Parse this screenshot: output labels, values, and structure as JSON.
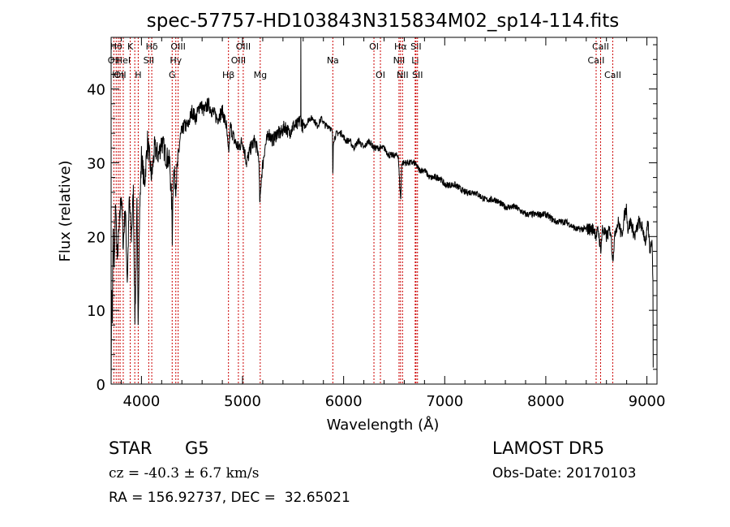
{
  "chart_data": {
    "type": "line",
    "title": "spec-57757-HD103843N315834M02_sp14-114.fits",
    "xlabel": "Wavelength (Å)",
    "ylabel": "Flux (relative)",
    "xlim": [
      3700,
      9100
    ],
    "ylim": [
      0,
      47
    ],
    "x_ticks": [
      4000,
      5000,
      6000,
      7000,
      8000,
      9000
    ],
    "y_ticks": [
      0,
      10,
      20,
      30,
      40
    ],
    "grid": false,
    "line_color": "#000000",
    "marker_line_color": "#cc0000",
    "spectrum_anchors": [
      [
        3700,
        0
      ],
      [
        3706,
        14
      ],
      [
        3712,
        9
      ],
      [
        3720,
        22
      ],
      [
        3730,
        15
      ],
      [
        3745,
        25
      ],
      [
        3760,
        17
      ],
      [
        3780,
        21
      ],
      [
        3800,
        26
      ],
      [
        3820,
        19
      ],
      [
        3840,
        24
      ],
      [
        3860,
        14
      ],
      [
        3880,
        25
      ],
      [
        3900,
        20
      ],
      [
        3920,
        26
      ],
      [
        3935,
        9
      ],
      [
        3948,
        17
      ],
      [
        3955,
        24
      ],
      [
        3968,
        9
      ],
      [
        3980,
        22
      ],
      [
        4000,
        31
      ],
      [
        4030,
        27
      ],
      [
        4060,
        33
      ],
      [
        4101,
        28
      ],
      [
        4130,
        32
      ],
      [
        4170,
        31
      ],
      [
        4200,
        33
      ],
      [
        4240,
        31
      ],
      [
        4280,
        30
      ],
      [
        4300,
        24
      ],
      [
        4305,
        20
      ],
      [
        4315,
        29
      ],
      [
        4340,
        27
      ],
      [
        4380,
        33
      ],
      [
        4420,
        35
      ],
      [
        4460,
        35
      ],
      [
        4500,
        37
      ],
      [
        4540,
        36
      ],
      [
        4580,
        38
      ],
      [
        4620,
        37
      ],
      [
        4660,
        38
      ],
      [
        4700,
        37
      ],
      [
        4750,
        36
      ],
      [
        4800,
        37
      ],
      [
        4840,
        35
      ],
      [
        4861,
        31
      ],
      [
        4880,
        35
      ],
      [
        4920,
        33
      ],
      [
        4960,
        32
      ],
      [
        5000,
        33
      ],
      [
        5040,
        30
      ],
      [
        5080,
        32
      ],
      [
        5120,
        33
      ],
      [
        5160,
        31
      ],
      [
        5172,
        24
      ],
      [
        5185,
        28
      ],
      [
        5220,
        32
      ],
      [
        5260,
        34
      ],
      [
        5300,
        33
      ],
      [
        5340,
        34
      ],
      [
        5380,
        34
      ],
      [
        5420,
        35
      ],
      [
        5460,
        34
      ],
      [
        5500,
        35
      ],
      [
        5540,
        35
      ],
      [
        5576,
        36
      ],
      [
        5590,
        35
      ],
      [
        5620,
        35
      ],
      [
        5660,
        36
      ],
      [
        5700,
        36
      ],
      [
        5740,
        35
      ],
      [
        5780,
        36
      ],
      [
        5820,
        35
      ],
      [
        5860,
        35
      ],
      [
        5890,
        34
      ],
      [
        5893,
        27
      ],
      [
        5898,
        33
      ],
      [
        5930,
        34
      ],
      [
        5980,
        34
      ],
      [
        6020,
        33
      ],
      [
        6060,
        33
      ],
      [
        6100,
        32
      ],
      [
        6150,
        33
      ],
      [
        6200,
        32
      ],
      [
        6250,
        33
      ],
      [
        6300,
        32
      ],
      [
        6350,
        32
      ],
      [
        6400,
        32
      ],
      [
        6450,
        31
      ],
      [
        6500,
        31
      ],
      [
        6540,
        31
      ],
      [
        6555,
        27
      ],
      [
        6565,
        25
      ],
      [
        6575,
        30
      ],
      [
        6620,
        30
      ],
      [
        6660,
        30
      ],
      [
        6700,
        30
      ],
      [
        6750,
        29
      ],
      [
        6800,
        29
      ],
      [
        6850,
        28
      ],
      [
        6900,
        28
      ],
      [
        6950,
        28
      ],
      [
        7000,
        27
      ],
      [
        7100,
        27
      ],
      [
        7200,
        26
      ],
      [
        7300,
        26
      ],
      [
        7400,
        25
      ],
      [
        7500,
        25
      ],
      [
        7600,
        24
      ],
      [
        7700,
        24
      ],
      [
        7800,
        23
      ],
      [
        7900,
        23
      ],
      [
        8000,
        23
      ],
      [
        8100,
        22
      ],
      [
        8200,
        22
      ],
      [
        8300,
        21
      ],
      [
        8400,
        21
      ],
      [
        8480,
        21
      ],
      [
        8498,
        20
      ],
      [
        8520,
        21
      ],
      [
        8542,
        18
      ],
      [
        8560,
        21
      ],
      [
        8600,
        20
      ],
      [
        8640,
        21
      ],
      [
        8662,
        17
      ],
      [
        8690,
        21
      ],
      [
        8720,
        22
      ],
      [
        8750,
        20
      ],
      [
        8780,
        23
      ],
      [
        8800,
        24
      ],
      [
        8810,
        21
      ],
      [
        8840,
        22
      ],
      [
        8880,
        20
      ],
      [
        8920,
        22
      ],
      [
        8960,
        21
      ],
      [
        8990,
        19
      ],
      [
        9010,
        22
      ],
      [
        9030,
        18
      ],
      [
        9050,
        20
      ],
      [
        9060,
        14
      ],
      [
        9062,
        3
      ],
      [
        9064,
        0
      ]
    ],
    "line_markers": [
      {
        "wavelength": 3727,
        "label": "OII",
        "row": 2
      },
      {
        "wavelength": 3750,
        "label": "Hθ",
        "row": 1
      },
      {
        "wavelength": 3771,
        "label": "Hη",
        "row": 3
      },
      {
        "wavelength": 3789,
        "label": "OII",
        "row": 3
      },
      {
        "wavelength": 3820,
        "label": "HeI",
        "row": 2
      },
      {
        "wavelength": 3889,
        "label": "K",
        "row": 1
      },
      {
        "wavelength": 3934,
        "label": "",
        "row": 0
      },
      {
        "wavelength": 3968,
        "label": "H",
        "row": 3
      },
      {
        "wavelength": 4072,
        "label": "SII",
        "row": 2
      },
      {
        "wavelength": 4102,
        "label": "Hδ",
        "row": 1
      },
      {
        "wavelength": 4304,
        "label": "G",
        "row": 3
      },
      {
        "wavelength": 4340,
        "label": "Hγ",
        "row": 2
      },
      {
        "wavelength": 4363,
        "label": "OIII",
        "row": 1
      },
      {
        "wavelength": 4861,
        "label": "Hβ",
        "row": 3
      },
      {
        "wavelength": 4959,
        "label": "OIII",
        "row": 2
      },
      {
        "wavelength": 5007,
        "label": "OIII",
        "row": 1
      },
      {
        "wavelength": 5175,
        "label": "Mg",
        "row": 3
      },
      {
        "wavelength": 5893,
        "label": "Na",
        "row": 2
      },
      {
        "wavelength": 6300,
        "label": "OI",
        "row": 1
      },
      {
        "wavelength": 6364,
        "label": "OI",
        "row": 3
      },
      {
        "wavelength": 6548,
        "label": "NII",
        "row": 2
      },
      {
        "wavelength": 6563,
        "label": "Hα",
        "row": 1
      },
      {
        "wavelength": 6583,
        "label": "NII",
        "row": 3
      },
      {
        "wavelength": 6708,
        "label": "Li",
        "row": 2
      },
      {
        "wavelength": 6716,
        "label": "SII",
        "row": 1
      },
      {
        "wavelength": 6731,
        "label": "SII",
        "row": 3
      },
      {
        "wavelength": 8498,
        "label": "CaII",
        "row": 2
      },
      {
        "wavelength": 8542,
        "label": "CaII",
        "row": 1
      },
      {
        "wavelength": 8662,
        "label": "CaII",
        "row": 3
      }
    ]
  },
  "info": {
    "object_class": "STAR",
    "subclass": "G5",
    "survey": "LAMOST DR5",
    "redshift_text": "cz = -40.3 ± 6.7 km/s",
    "obs_date": "Obs-Date: 20170103",
    "coords": "RA = 156.92737, DEC =  32.65021"
  }
}
